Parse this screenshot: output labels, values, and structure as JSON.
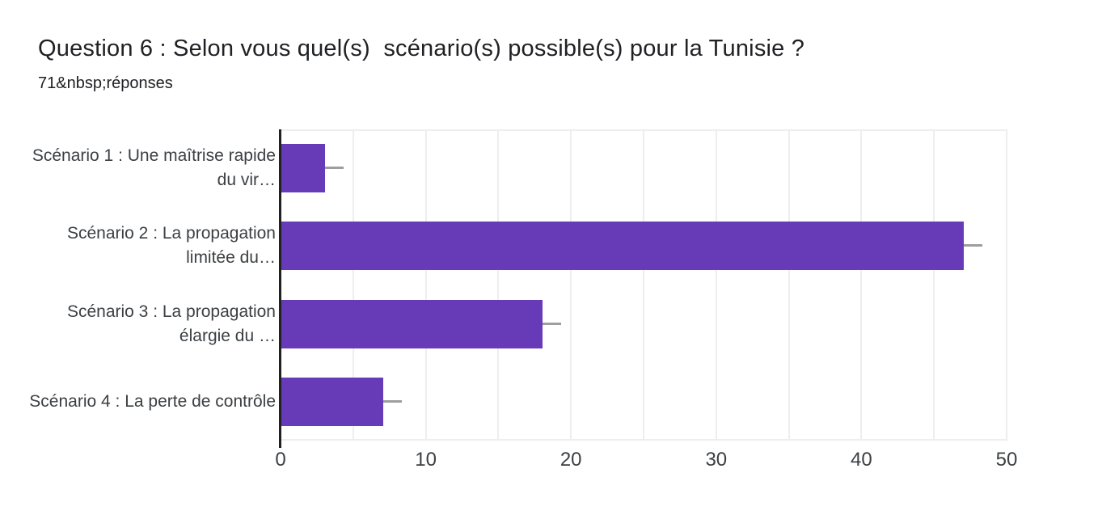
{
  "header": {
    "title": "Question 6 : Selon vous quel(s)  scénario(s) possible(s) pour la Tunisie ?",
    "subtitle": "71&nbsp;réponses"
  },
  "chart_data": {
    "type": "bar",
    "orientation": "horizontal",
    "title": "Question 6 : Selon vous quel(s)  scénario(s) possible(s) pour la Tunisie ?",
    "subtitle": "71&nbsp;réponses",
    "categories": [
      "Scénario 1 : Une maîtrise rapide du vir…",
      "Scénario 2 : La propagation limitée du…",
      "Scénario 3 : La propagation élargie du …",
      "Scénario 4 : La perte de contrôle"
    ],
    "category_display_lines": [
      [
        "Scénario 1 : Une maîtrise rapide",
        "du vir…"
      ],
      [
        "Scénario 2 : La propagation",
        "limitée du…"
      ],
      [
        "Scénario 3 : La propagation",
        "élargie du …"
      ],
      [
        "Scénario 4 : La perte de contrôle"
      ]
    ],
    "values": [
      3,
      47,
      18,
      7
    ],
    "xlabel": "",
    "ylabel": "",
    "xlim": [
      0,
      50
    ],
    "x_ticks": [
      0,
      10,
      20,
      30,
      40,
      50
    ],
    "gridline_step": 5,
    "grid": true,
    "legend": "none",
    "error_bars": true,
    "colors": {
      "bar": "#673ab7",
      "whisker": "#9e9e9e",
      "axis_baseline": "#212121",
      "gridline": "#eeeeee",
      "title_text": "#202124",
      "label_text": "#3c4043"
    }
  }
}
